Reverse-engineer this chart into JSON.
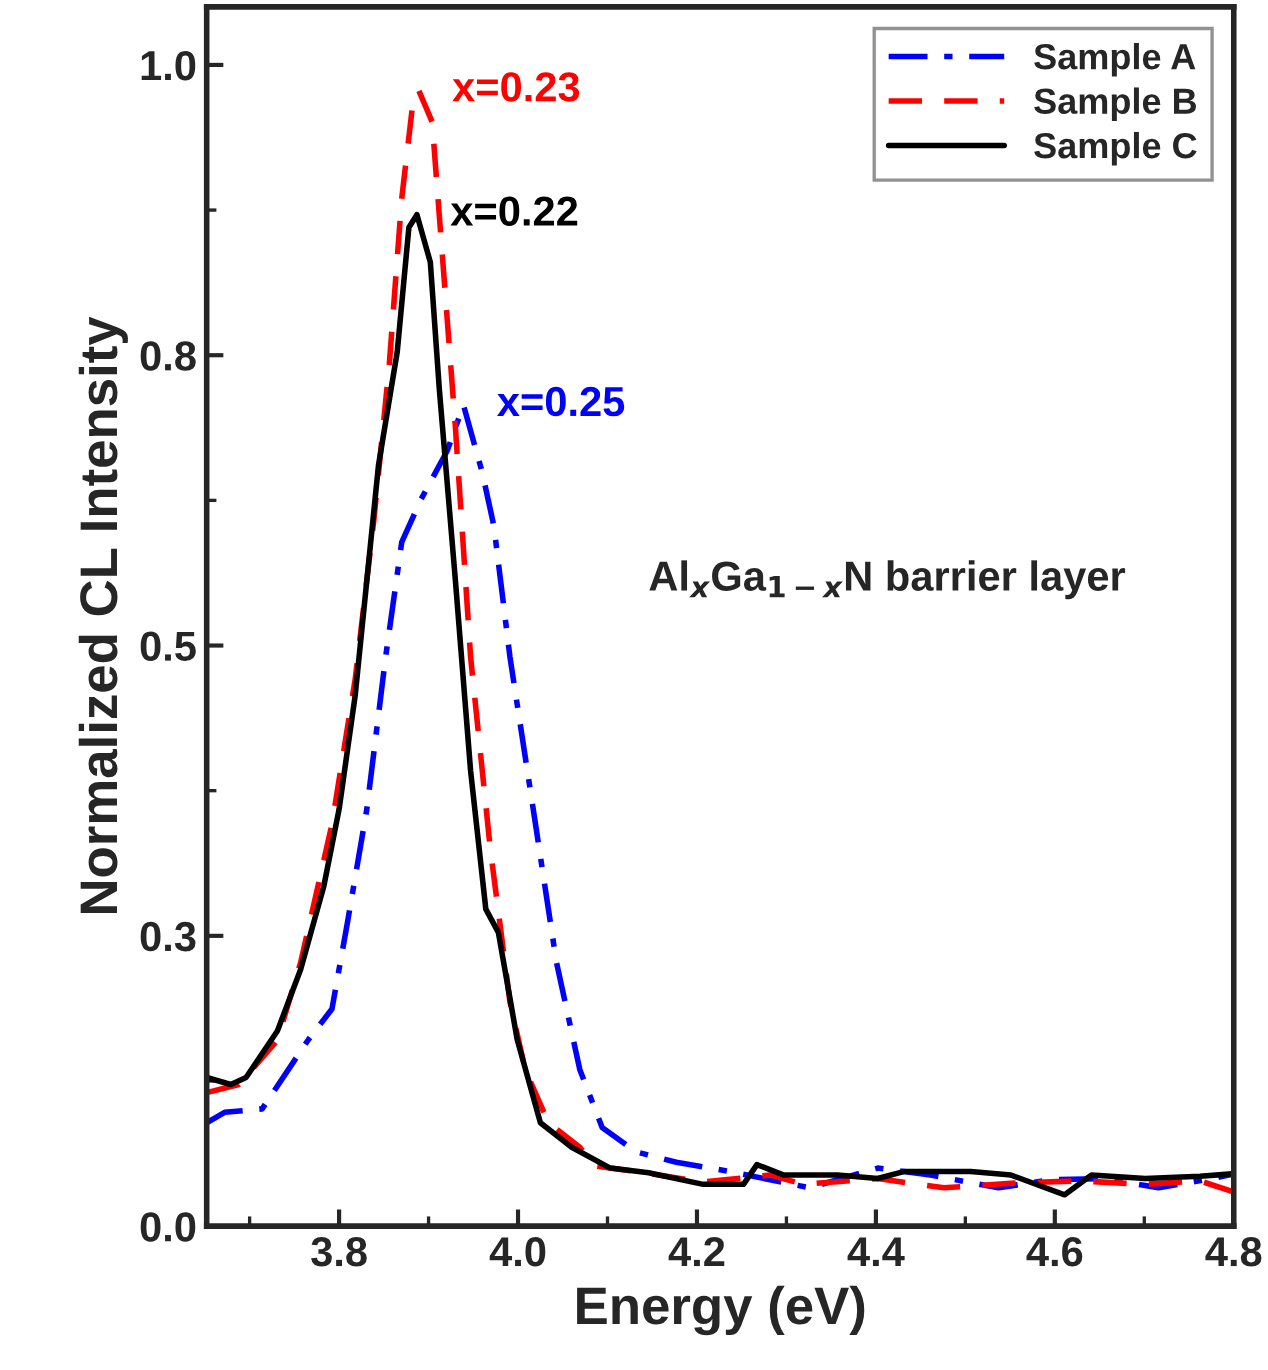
{
  "chart_data": {
    "type": "line",
    "xlabel": "Energy (eV)",
    "ylabel": "Normalized CL Intensity",
    "xlim": [
      3.652,
      4.8
    ],
    "xticks": [
      3.8,
      {
        "value": 4.0,
        "label": "4.0"
      },
      4.2,
      4.4,
      4.6,
      4.8
    ],
    "ylim": [
      0,
      1.05
    ],
    "yticks": [
      {
        "value": 0,
        "label": "0.0"
      },
      {
        "value": 0.25,
        "label": "0.3"
      },
      {
        "value": 0.5,
        "label": "0.5"
      },
      {
        "value": 0.75,
        "label": "0.8"
      },
      {
        "value": 1.0,
        "label": "1.0"
      }
    ],
    "grid": false,
    "legend": "top right",
    "marker": "none",
    "series": [
      {
        "name": "Sample A",
        "color": "#0000ff",
        "line_style": "dashdot",
        "x": [
          3.652,
          3.672,
          3.714,
          3.766,
          3.792,
          3.809,
          3.831,
          3.852,
          3.87,
          3.891,
          3.921,
          3.939,
          3.96,
          3.973,
          3.991,
          4.017,
          4.043,
          4.069,
          4.094,
          4.132,
          4.177,
          4.237,
          4.326,
          4.402,
          4.461,
          4.537,
          4.596,
          4.656,
          4.716,
          4.776,
          4.8
        ],
        "values": [
          0.089,
          0.098,
          0.101,
          0.161,
          0.187,
          0.26,
          0.359,
          0.49,
          0.589,
          0.625,
          0.668,
          0.707,
          0.649,
          0.603,
          0.49,
          0.359,
          0.227,
          0.135,
          0.085,
          0.064,
          0.055,
          0.047,
          0.033,
          0.05,
          0.044,
          0.033,
          0.04,
          0.041,
          0.033,
          0.041,
          0.045
        ]
      },
      {
        "name": "Sample B",
        "color": "#ff0000",
        "line_style": "dashed",
        "x": [
          3.652,
          3.688,
          3.731,
          3.757,
          3.792,
          3.818,
          3.839,
          3.856,
          3.87,
          3.883,
          3.889,
          3.904,
          3.917,
          3.93,
          3.947,
          3.969,
          3.991,
          4.008,
          4.034,
          4.069,
          4.085,
          4.132,
          4.207,
          4.282,
          4.319,
          4.402,
          4.476,
          4.551,
          4.627,
          4.701,
          4.762,
          4.798
        ],
        "values": [
          0.115,
          0.122,
          0.16,
          0.227,
          0.346,
          0.471,
          0.609,
          0.741,
          0.885,
          0.971,
          0.978,
          0.951,
          0.82,
          0.688,
          0.49,
          0.325,
          0.193,
          0.135,
          0.089,
          0.068,
          0.052,
          0.047,
          0.038,
          0.044,
          0.036,
          0.041,
          0.033,
          0.037,
          0.039,
          0.036,
          0.039,
          0.03
        ]
      },
      {
        "name": "Sample C",
        "color": "#000000",
        "line_style": "solid",
        "x": [
          3.652,
          3.679,
          3.696,
          3.731,
          3.757,
          3.783,
          3.8,
          3.818,
          3.831,
          3.844,
          3.865,
          3.878,
          3.887,
          3.902,
          3.912,
          3.93,
          3.947,
          3.964,
          3.978,
          3.999,
          4.025,
          4.06,
          4.103,
          4.146,
          4.207,
          4.252,
          4.267,
          4.297,
          4.357,
          4.402,
          4.431,
          4.506,
          4.551,
          4.611,
          4.641,
          4.701,
          4.762,
          4.798
        ],
        "values": [
          0.128,
          0.122,
          0.128,
          0.168,
          0.221,
          0.293,
          0.359,
          0.457,
          0.556,
          0.655,
          0.753,
          0.86,
          0.871,
          0.83,
          0.721,
          0.556,
          0.392,
          0.273,
          0.253,
          0.161,
          0.089,
          0.068,
          0.05,
          0.046,
          0.036,
          0.036,
          0.053,
          0.044,
          0.044,
          0.041,
          0.047,
          0.047,
          0.044,
          0.027,
          0.044,
          0.041,
          0.043,
          0.045
        ]
      }
    ],
    "annotations": [
      {
        "text": "x=0.23",
        "x": 3.889,
        "y": 0.978
      },
      {
        "text": "x=0.22",
        "x": 3.887,
        "y": 0.871
      },
      {
        "text": "x=0.25",
        "x": 3.939,
        "y": 0.707
      },
      "Al$_{x}$Ga$_{1−x}$N barrier layer"
    ]
  }
}
